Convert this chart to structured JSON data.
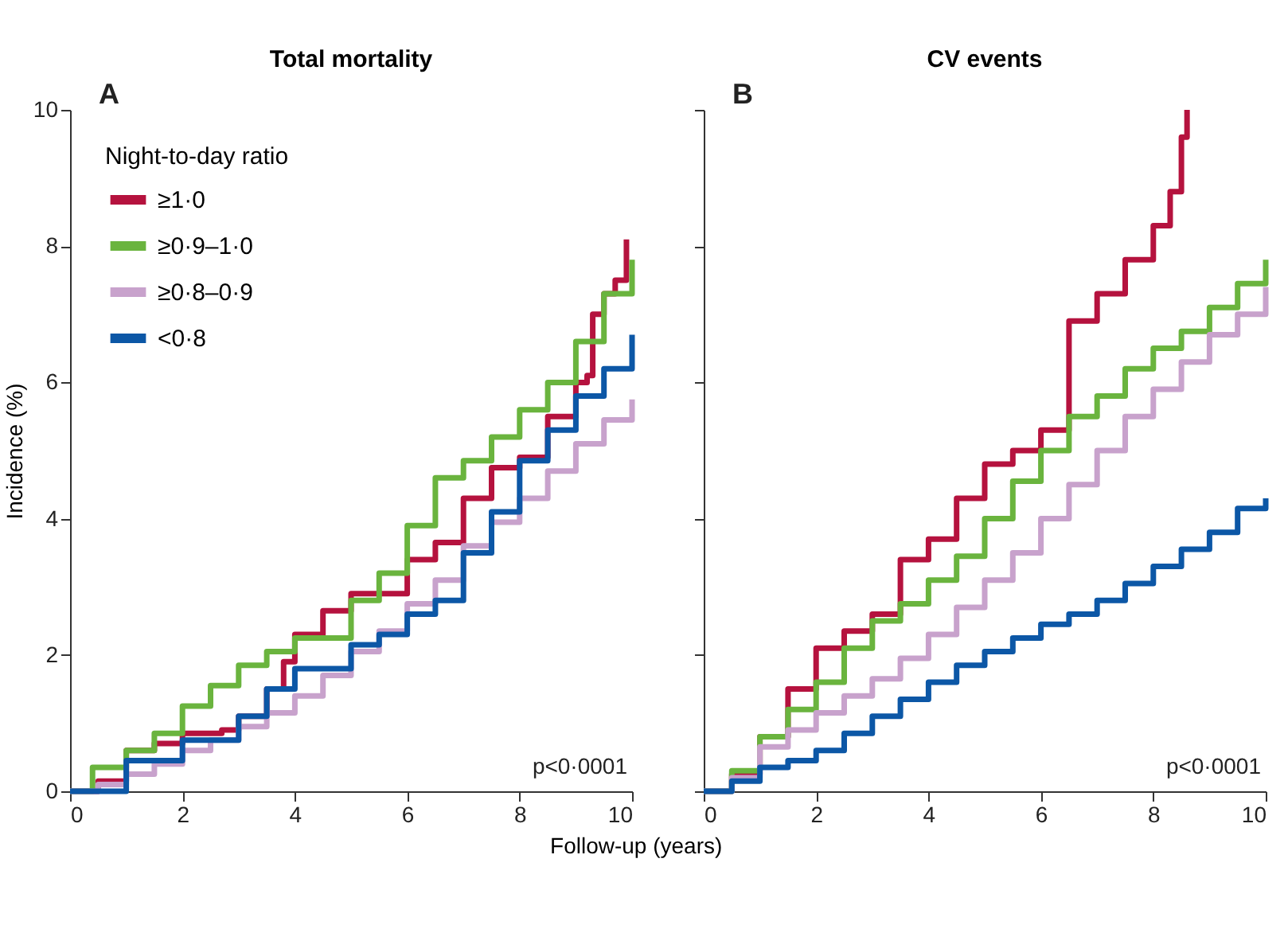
{
  "chart_data": [
    {
      "type": "step",
      "title": "Total mortality",
      "ylabel": "Incidence (%)",
      "xlabel": "Follow-up (years)",
      "legend_title": "Night-to-day ratio",
      "legend": "top left",
      "grid": false,
      "xlim": [
        0,
        10
      ],
      "xticks": [
        0,
        2,
        4,
        6,
        8,
        10
      ],
      "ylim": [
        0,
        10
      ],
      "yticks": [
        0,
        2,
        4,
        6,
        8,
        10
      ],
      "line_style": "solid",
      "marker": "none",
      "annotations": [
        "A",
        "p<0·0001"
      ],
      "series": [
        {
          "name": "≥1·0",
          "color": "#b5123e",
          "x": [
            0,
            0.5,
            1,
            1.5,
            2,
            2.7,
            3,
            3.5,
            3.8,
            4,
            4.5,
            5,
            5.5,
            6,
            6.5,
            7,
            7.5,
            8,
            8.5,
            9,
            9.2,
            9.3,
            9.5,
            9.7,
            9.9
          ],
          "values": [
            0,
            0.15,
            0.6,
            0.7,
            0.85,
            0.9,
            1.1,
            1.5,
            1.9,
            2.3,
            2.65,
            2.9,
            2.9,
            3.4,
            3.65,
            4.3,
            4.75,
            4.9,
            5.5,
            6.0,
            6.1,
            7.0,
            7.3,
            7.5,
            8.1
          ]
        },
        {
          "name": "≥0·9–1·0",
          "color": "#6ab43e",
          "x": [
            0,
            0.4,
            1,
            1.5,
            2,
            2.5,
            3,
            3.5,
            4,
            5,
            5.5,
            6,
            6.5,
            7,
            7.5,
            8,
            8.5,
            9,
            9.5,
            10
          ],
          "values": [
            0,
            0.35,
            0.6,
            0.85,
            1.25,
            1.55,
            1.85,
            2.05,
            2.25,
            2.8,
            3.2,
            3.9,
            4.6,
            4.85,
            5.2,
            5.6,
            6.0,
            6.6,
            7.3,
            7.8
          ]
        },
        {
          "name": "≥0·8–0·9",
          "color": "#c8a2cc",
          "x": [
            0,
            0.5,
            1,
            1.5,
            2,
            2.5,
            3,
            3.5,
            4,
            4.5,
            5,
            5.5,
            6,
            6.5,
            7,
            7.5,
            8,
            8.5,
            9,
            9.5,
            10
          ],
          "values": [
            0,
            0.1,
            0.25,
            0.4,
            0.6,
            0.75,
            0.95,
            1.15,
            1.4,
            1.7,
            2.05,
            2.35,
            2.75,
            3.1,
            3.6,
            3.95,
            4.3,
            4.7,
            5.1,
            5.45,
            5.75
          ]
        },
        {
          "name": "<0·8",
          "color": "#0c57a6",
          "x": [
            0,
            1,
            2,
            3,
            3.5,
            4,
            5,
            5.5,
            6,
            6.5,
            7,
            7.5,
            8,
            8.5,
            9,
            9.5,
            10
          ],
          "values": [
            0,
            0.45,
            0.75,
            1.1,
            1.5,
            1.8,
            2.15,
            2.3,
            2.6,
            2.8,
            3.5,
            4.1,
            4.85,
            5.3,
            5.8,
            6.2,
            6.7
          ]
        }
      ]
    },
    {
      "type": "step",
      "title": "CV events",
      "legend": false,
      "grid": false,
      "tick_labels": "x",
      "xlim": [
        0,
        10
      ],
      "xticks": [
        0,
        2,
        4,
        6,
        8,
        10
      ],
      "ylim": [
        0,
        10
      ],
      "yticks": [
        0,
        2,
        4,
        6,
        8,
        10
      ],
      "line_style": "solid",
      "marker": "none",
      "annotations": [
        "B",
        "p<0·0001"
      ],
      "series": [
        {
          "color": "#b5123e",
          "x": [
            0,
            0.5,
            1,
            1.5,
            2,
            2.5,
            3,
            3.5,
            4,
            4.5,
            5,
            5.5,
            6,
            6.5,
            7,
            7.5,
            8,
            8.3,
            8.5,
            8.6
          ],
          "values": [
            0,
            0.25,
            0.8,
            1.5,
            2.1,
            2.35,
            2.6,
            3.4,
            3.7,
            4.3,
            4.8,
            5.0,
            5.3,
            6.9,
            7.3,
            7.8,
            8.3,
            8.8,
            9.6,
            10
          ]
        },
        {
          "color": "#6ab43e",
          "x": [
            0,
            0.5,
            1,
            1.5,
            2,
            2.5,
            3,
            3.5,
            4,
            4.5,
            5,
            5.5,
            6,
            6.5,
            7,
            7.5,
            8,
            8.5,
            9,
            9.5,
            10
          ],
          "values": [
            0,
            0.3,
            0.8,
            1.2,
            1.6,
            2.1,
            2.5,
            2.75,
            3.1,
            3.45,
            4.0,
            4.55,
            5.0,
            5.5,
            5.8,
            6.2,
            6.5,
            6.75,
            7.1,
            7.45,
            7.8
          ]
        },
        {
          "color": "#c8a2cc",
          "x": [
            0,
            0.5,
            1,
            1.5,
            2,
            2.5,
            3,
            3.5,
            4,
            4.5,
            5,
            5.5,
            6,
            6.5,
            7,
            7.5,
            8,
            8.5,
            9,
            9.5,
            10
          ],
          "values": [
            0,
            0.2,
            0.65,
            0.9,
            1.15,
            1.4,
            1.65,
            1.95,
            2.3,
            2.7,
            3.1,
            3.5,
            4.0,
            4.5,
            5.0,
            5.5,
            5.9,
            6.3,
            6.7,
            7.0,
            7.4
          ]
        },
        {
          "color": "#0c57a6",
          "x": [
            0,
            0.5,
            1,
            1.5,
            2,
            2.5,
            3,
            3.5,
            4,
            4.5,
            5,
            5.5,
            6,
            6.5,
            7,
            7.5,
            8,
            8.5,
            9,
            9.5,
            10
          ],
          "values": [
            0,
            0.15,
            0.35,
            0.45,
            0.6,
            0.85,
            1.1,
            1.35,
            1.6,
            1.85,
            2.05,
            2.25,
            2.45,
            2.6,
            2.8,
            3.05,
            3.3,
            3.55,
            3.8,
            4.15,
            4.3
          ]
        }
      ]
    }
  ]
}
